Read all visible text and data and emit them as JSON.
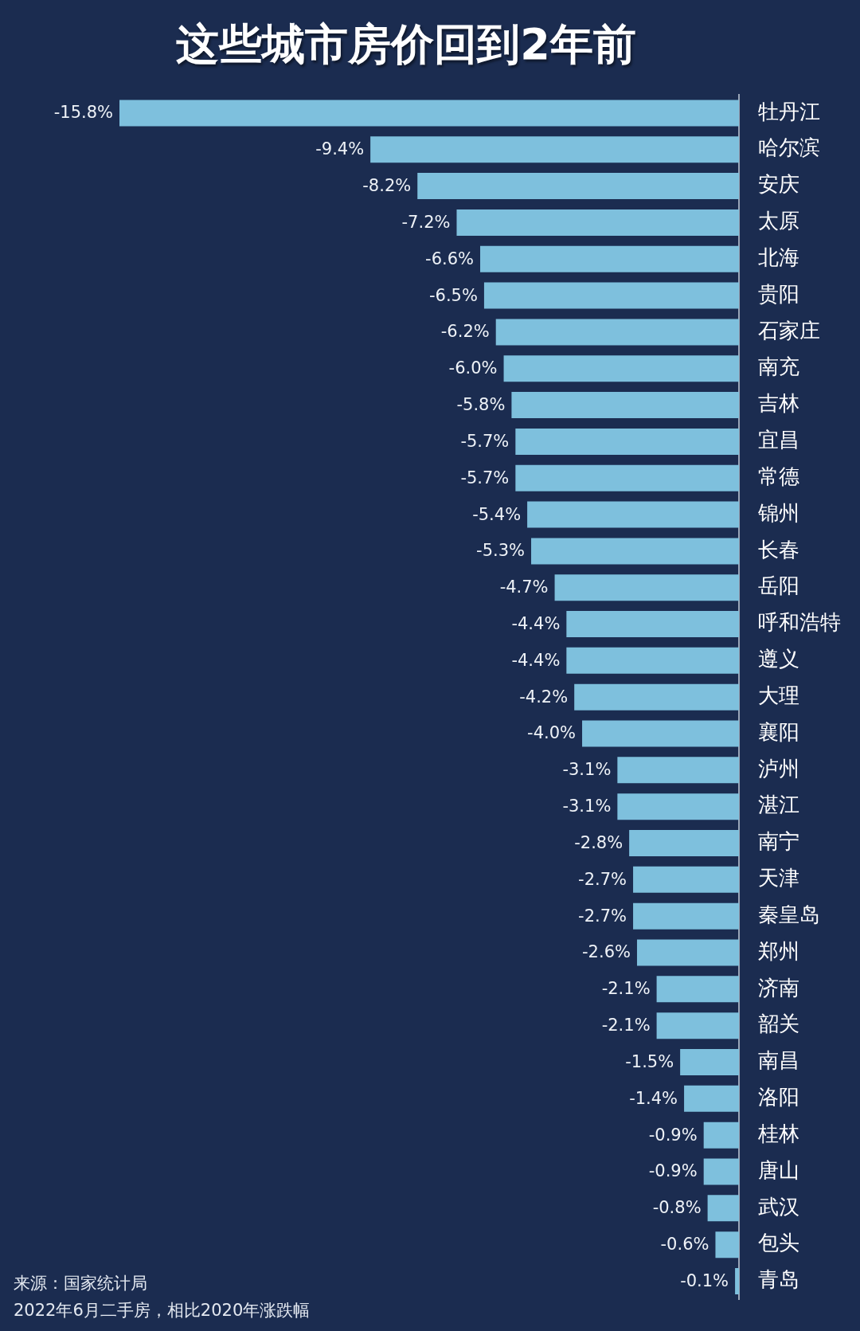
{
  "chart_data": {
    "type": "bar",
    "orientation": "horizontal",
    "title": "这些城市房价回到2年前",
    "categories": [
      "牡丹江",
      "哈尔滨",
      "安庆",
      "太原",
      "北海",
      "贵阳",
      "石家庄",
      "南充",
      "吉林",
      "宜昌",
      "常德",
      "锦州",
      "长春",
      "岳阳",
      "呼和浩特",
      "遵义",
      "大理",
      "襄阳",
      "泸州",
      "湛江",
      "南宁",
      "天津",
      "秦皇岛",
      "郑州",
      "济南",
      "韶关",
      "南昌",
      "洛阳",
      "桂林",
      "唐山",
      "武汉",
      "包头",
      "青岛"
    ],
    "values": [
      -15.8,
      -9.4,
      -8.2,
      -7.2,
      -6.6,
      -6.5,
      -6.2,
      -6.0,
      -5.8,
      -5.7,
      -5.7,
      -5.4,
      -5.3,
      -4.7,
      -4.4,
      -4.4,
      -4.2,
      -4.0,
      -3.1,
      -3.1,
      -2.8,
      -2.7,
      -2.7,
      -2.6,
      -2.1,
      -2.1,
      -1.5,
      -1.4,
      -0.9,
      -0.9,
      -0.8,
      -0.6,
      -0.1
    ],
    "value_labels": [
      "-15.8%",
      "-9.4%",
      "-8.2%",
      "-7.2%",
      "-6.6%",
      "-6.5%",
      "-6.2%",
      "-6.0%",
      "-5.8%",
      "-5.7%",
      "-5.7%",
      "-5.4%",
      "-5.3%",
      "-4.7%",
      "-4.4%",
      "-4.4%",
      "-4.2%",
      "-4.0%",
      "-3.1%",
      "-3.1%",
      "-2.8%",
      "-2.7%",
      "-2.7%",
      "-2.6%",
      "-2.1%",
      "-2.1%",
      "-1.5%",
      "-1.4%",
      "-0.9%",
      "-0.9%",
      "-0.8%",
      "-0.6%",
      "-0.1%"
    ],
    "color": "#7ec0dd",
    "tick_labels": "y",
    "annotations": [
      "来源：国家统计局",
      "2022年6月二手房，相比2020年涨跌幅"
    ]
  }
}
